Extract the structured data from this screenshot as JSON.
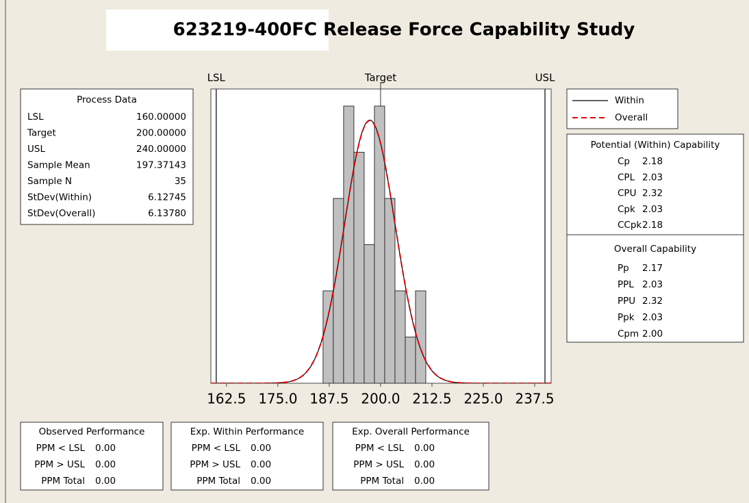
{
  "title": "623219-400FC Release Force Capability Study",
  "chart_data": {
    "type": "histogram",
    "bins": [
      186,
      188.5,
      191,
      193.5,
      196,
      198.5,
      201,
      203.5,
      206,
      208.5,
      211
    ],
    "counts": [
      2,
      4,
      6,
      5,
      3,
      6,
      4,
      2,
      1,
      2
    ],
    "color": "#c0c0c0",
    "xlim": [
      158.7,
      241.5
    ],
    "ylim": [
      0,
      6.37
    ],
    "xticks": [
      162.5,
      {
        "value": 175,
        "label": "175.0"
      },
      187.5,
      {
        "value": 200,
        "label": "200.0"
      },
      212.5,
      {
        "value": 225,
        "label": "225.0"
      },
      237.5
    ],
    "spec_lines": [
      {
        "label": "LSL",
        "value": 160
      },
      {
        "label": "Target",
        "value": 200
      },
      {
        "label": "USL",
        "value": 240
      }
    ],
    "curves": [
      {
        "name": "Within",
        "color": "#000000",
        "style": "solid"
      },
      {
        "name": "Overall",
        "color": "#e00000",
        "style": "dashed"
      }
    ]
  },
  "process_data": {
    "title": "Process Data",
    "rows": [
      [
        "LSL",
        "160.00000"
      ],
      [
        "Target",
        "200.00000"
      ],
      [
        "USL",
        "240.00000"
      ],
      [
        "Sample Mean",
        "197.37143"
      ],
      [
        "Sample N",
        "35"
      ],
      [
        "StDev(Within)",
        "6.12745"
      ],
      [
        "StDev(Overall)",
        "6.13780"
      ]
    ]
  },
  "potential": {
    "title": "Potential (Within) Capability",
    "rows": [
      [
        "Cp",
        "2.18"
      ],
      [
        "CPL",
        "2.03"
      ],
      [
        "CPU",
        "2.32"
      ],
      [
        "Cpk",
        "2.03"
      ],
      [
        "CCpk",
        "2.18"
      ]
    ]
  },
  "overall": {
    "title": "Overall Capability",
    "rows": [
      [
        "Pp",
        "2.17"
      ],
      [
        "PPL",
        "2.03"
      ],
      [
        "PPU",
        "2.32"
      ],
      [
        "Ppk",
        "2.03"
      ],
      [
        "Cpm",
        "2.00"
      ]
    ]
  },
  "performance": [
    {
      "title": "Observed Performance",
      "rows": [
        [
          "PPM < LSL",
          "0.00"
        ],
        [
          "PPM > USL",
          "0.00"
        ],
        [
          "PPM Total",
          "0.00"
        ]
      ]
    },
    {
      "title": "Exp. Within Performance",
      "rows": [
        [
          "PPM < LSL",
          "0.00"
        ],
        [
          "PPM > USL",
          "0.00"
        ],
        [
          "PPM Total",
          "0.00"
        ]
      ]
    },
    {
      "title": "Exp. Overall Performance",
      "rows": [
        [
          "PPM < LSL",
          "0.00"
        ],
        [
          "PPM > USL",
          "0.00"
        ],
        [
          "PPM Total",
          "0.00"
        ]
      ]
    }
  ]
}
